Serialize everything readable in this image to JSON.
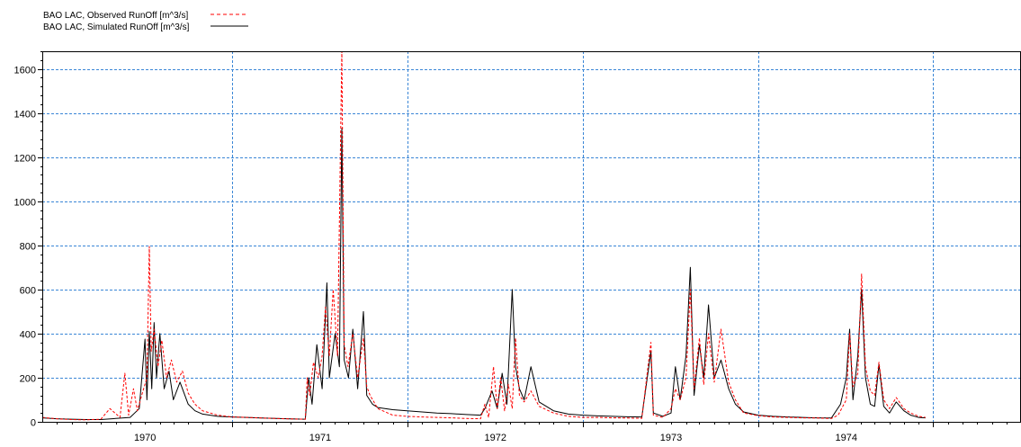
{
  "chart_data": {
    "type": "line",
    "title": "",
    "xlabel": "",
    "ylabel": "",
    "xlim": [
      "1969-06-01",
      "1974-12-31"
    ],
    "ylim": [
      0,
      1680
    ],
    "y_ticks": [
      0,
      200,
      400,
      600,
      800,
      1000,
      1200,
      1400,
      1600
    ],
    "x_ticks": [
      "1970",
      "1971",
      "1972",
      "1973",
      "1974"
    ],
    "grid": true,
    "legend_position": "top-left",
    "colors": {
      "observed": "#ff0000",
      "simulated": "#000000",
      "grid": "#3a86d6",
      "axis": "#000000"
    },
    "series": [
      {
        "name": "BAO LAC, Observed RunOff [m^3/s]",
        "style": "dashed",
        "color": "#ff0000",
        "points": [
          [
            "1969-06-01",
            20
          ],
          [
            "1969-07-01",
            14
          ],
          [
            "1969-08-01",
            10
          ],
          [
            "1969-09-01",
            9
          ],
          [
            "1969-10-01",
            12
          ],
          [
            "1969-10-20",
            60
          ],
          [
            "1969-11-10",
            20
          ],
          [
            "1969-11-20",
            220
          ],
          [
            "1969-11-28",
            30
          ],
          [
            "1969-12-08",
            150
          ],
          [
            "1969-12-16",
            50
          ],
          [
            "1969-12-25",
            120
          ],
          [
            "1970-01-05",
            200
          ],
          [
            "1970-01-10",
            795
          ],
          [
            "1970-01-14",
            320
          ],
          [
            "1970-01-20",
            420
          ],
          [
            "1970-01-28",
            250
          ],
          [
            "1970-02-05",
            370
          ],
          [
            "1970-02-15",
            200
          ],
          [
            "1970-02-25",
            280
          ],
          [
            "1970-03-08",
            180
          ],
          [
            "1970-03-20",
            230
          ],
          [
            "1970-04-01",
            130
          ],
          [
            "1970-04-15",
            80
          ],
          [
            "1970-05-01",
            50
          ],
          [
            "1970-06-01",
            30
          ],
          [
            "1970-07-01",
            22
          ],
          [
            "1970-08-01",
            20
          ],
          [
            "1970-09-01",
            17
          ],
          [
            "1970-10-01",
            15
          ],
          [
            "1970-11-01",
            13
          ],
          [
            "1970-12-01",
            12
          ],
          [
            "1970-12-05",
            200
          ],
          [
            "1970-12-10",
            120
          ],
          [
            "1970-12-18",
            270
          ],
          [
            "1970-12-28",
            200
          ],
          [
            "1971-01-05",
            300
          ],
          [
            "1971-01-12",
            520
          ],
          [
            "1971-01-20",
            300
          ],
          [
            "1971-01-28",
            600
          ],
          [
            "1971-02-06",
            300
          ],
          [
            "1971-02-15",
            1680
          ],
          [
            "1971-02-20",
            350
          ],
          [
            "1971-02-28",
            250
          ],
          [
            "1971-03-10",
            400
          ],
          [
            "1971-03-20",
            200
          ],
          [
            "1971-04-01",
            380
          ],
          [
            "1971-04-08",
            160
          ],
          [
            "1971-04-15",
            120
          ],
          [
            "1971-05-01",
            60
          ],
          [
            "1971-06-01",
            30
          ],
          [
            "1971-07-01",
            25
          ],
          [
            "1971-08-01",
            22
          ],
          [
            "1971-09-01",
            20
          ],
          [
            "1971-10-01",
            18
          ],
          [
            "1971-11-01",
            15
          ],
          [
            "1971-12-01",
            14
          ],
          [
            "1971-12-10",
            80
          ],
          [
            "1971-12-18",
            20
          ],
          [
            "1971-12-28",
            250
          ],
          [
            "1972-01-05",
            60
          ],
          [
            "1972-01-12",
            200
          ],
          [
            "1972-01-20",
            50
          ],
          [
            "1972-01-28",
            170
          ],
          [
            "1972-02-05",
            60
          ],
          [
            "1972-02-12",
            380
          ],
          [
            "1972-02-20",
            120
          ],
          [
            "1972-03-01",
            90
          ],
          [
            "1972-03-15",
            140
          ],
          [
            "1972-04-01",
            70
          ],
          [
            "1972-05-01",
            40
          ],
          [
            "1972-06-01",
            25
          ],
          [
            "1972-07-01",
            20
          ],
          [
            "1972-08-01",
            20
          ],
          [
            "1972-09-01",
            18
          ],
          [
            "1972-10-01",
            17
          ],
          [
            "1972-11-01",
            16
          ],
          [
            "1972-11-20",
            360
          ],
          [
            "1972-11-25",
            30
          ],
          [
            "1972-12-15",
            20
          ],
          [
            "1973-01-01",
            60
          ],
          [
            "1973-01-10",
            150
          ],
          [
            "1973-01-20",
            100
          ],
          [
            "1973-02-01",
            200
          ],
          [
            "1973-02-10",
            600
          ],
          [
            "1973-02-18",
            150
          ],
          [
            "1973-03-01",
            380
          ],
          [
            "1973-03-10",
            170
          ],
          [
            "1973-03-20",
            400
          ],
          [
            "1973-04-01",
            180
          ],
          [
            "1973-04-15",
            420
          ],
          [
            "1973-05-01",
            180
          ],
          [
            "1973-05-15",
            100
          ],
          [
            "1973-06-01",
            40
          ],
          [
            "1973-07-01",
            28
          ],
          [
            "1973-08-01",
            22
          ],
          [
            "1973-09-01",
            20
          ],
          [
            "1973-10-01",
            18
          ],
          [
            "1973-11-01",
            17
          ],
          [
            "1973-12-01",
            15
          ],
          [
            "1973-12-15",
            30
          ],
          [
            "1974-01-01",
            100
          ],
          [
            "1974-01-08",
            400
          ],
          [
            "1974-01-15",
            160
          ],
          [
            "1974-01-25",
            220
          ],
          [
            "1974-02-02",
            670
          ],
          [
            "1974-02-10",
            250
          ],
          [
            "1974-02-20",
            140
          ],
          [
            "1974-03-01",
            120
          ],
          [
            "1974-03-10",
            270
          ],
          [
            "1974-03-20",
            100
          ],
          [
            "1974-04-01",
            60
          ],
          [
            "1974-04-15",
            110
          ],
          [
            "1974-05-01",
            60
          ],
          [
            "1974-05-15",
            40
          ],
          [
            "1974-06-01",
            25
          ],
          [
            "1974-06-15",
            20
          ]
        ]
      },
      {
        "name": "BAO LAC, Simulated RunOff [m^3/s]",
        "style": "solid",
        "color": "#000000",
        "points": [
          [
            "1969-06-01",
            18
          ],
          [
            "1969-07-01",
            14
          ],
          [
            "1969-08-01",
            12
          ],
          [
            "1969-09-01",
            10
          ],
          [
            "1969-10-01",
            10
          ],
          [
            "1969-11-01",
            15
          ],
          [
            "1969-12-01",
            20
          ],
          [
            "1969-12-20",
            60
          ],
          [
            "1970-01-01",
            375
          ],
          [
            "1970-01-05",
            100
          ],
          [
            "1970-01-10",
            410
          ],
          [
            "1970-01-15",
            150
          ],
          [
            "1970-01-20",
            450
          ],
          [
            "1970-01-25",
            200
          ],
          [
            "1970-02-01",
            400
          ],
          [
            "1970-02-10",
            150
          ],
          [
            "1970-02-20",
            230
          ],
          [
            "1970-03-01",
            100
          ],
          [
            "1970-03-15",
            180
          ],
          [
            "1970-04-01",
            80
          ],
          [
            "1970-04-15",
            50
          ],
          [
            "1970-05-01",
            35
          ],
          [
            "1970-06-01",
            25
          ],
          [
            "1970-07-01",
            22
          ],
          [
            "1970-08-01",
            20
          ],
          [
            "1970-09-01",
            17
          ],
          [
            "1970-10-01",
            15
          ],
          [
            "1970-11-01",
            13
          ],
          [
            "1970-12-01",
            12
          ],
          [
            "1970-12-08",
            200
          ],
          [
            "1970-12-15",
            80
          ],
          [
            "1970-12-25",
            350
          ],
          [
            "1971-01-05",
            150
          ],
          [
            "1971-01-15",
            630
          ],
          [
            "1971-01-20",
            200
          ],
          [
            "1971-02-01",
            400
          ],
          [
            "1971-02-10",
            250
          ],
          [
            "1971-02-15",
            1330
          ],
          [
            "1971-02-20",
            280
          ],
          [
            "1971-03-01",
            200
          ],
          [
            "1971-03-10",
            420
          ],
          [
            "1971-03-20",
            150
          ],
          [
            "1971-04-01",
            500
          ],
          [
            "1971-04-08",
            120
          ],
          [
            "1971-04-20",
            80
          ],
          [
            "1971-05-01",
            65
          ],
          [
            "1971-06-01",
            55
          ],
          [
            "1971-07-01",
            50
          ],
          [
            "1971-08-01",
            45
          ],
          [
            "1971-09-01",
            40
          ],
          [
            "1971-10-01",
            37
          ],
          [
            "1971-11-01",
            33
          ],
          [
            "1971-12-01",
            30
          ],
          [
            "1971-12-10",
            60
          ],
          [
            "1971-12-25",
            140
          ],
          [
            "1972-01-05",
            60
          ],
          [
            "1972-01-15",
            220
          ],
          [
            "1972-01-25",
            80
          ],
          [
            "1972-02-05",
            600
          ],
          [
            "1972-02-12",
            250
          ],
          [
            "1972-02-20",
            150
          ],
          [
            "1972-03-01",
            100
          ],
          [
            "1972-03-15",
            250
          ],
          [
            "1972-04-01",
            90
          ],
          [
            "1972-05-01",
            50
          ],
          [
            "1972-06-01",
            35
          ],
          [
            "1972-07-01",
            30
          ],
          [
            "1972-08-01",
            27
          ],
          [
            "1972-09-01",
            25
          ],
          [
            "1972-10-01",
            23
          ],
          [
            "1972-11-01",
            22
          ],
          [
            "1972-11-20",
            320
          ],
          [
            "1972-11-25",
            40
          ],
          [
            "1972-12-15",
            25
          ],
          [
            "1973-01-01",
            40
          ],
          [
            "1973-01-10",
            250
          ],
          [
            "1973-01-20",
            100
          ],
          [
            "1973-02-01",
            300
          ],
          [
            "1973-02-10",
            700
          ],
          [
            "1973-02-18",
            120
          ],
          [
            "1973-03-01",
            350
          ],
          [
            "1973-03-10",
            200
          ],
          [
            "1973-03-20",
            530
          ],
          [
            "1973-04-01",
            200
          ],
          [
            "1973-04-15",
            280
          ],
          [
            "1973-05-01",
            150
          ],
          [
            "1973-05-15",
            80
          ],
          [
            "1973-06-01",
            45
          ],
          [
            "1973-07-01",
            30
          ],
          [
            "1973-08-01",
            25
          ],
          [
            "1973-09-01",
            22
          ],
          [
            "1973-10-01",
            20
          ],
          [
            "1973-11-01",
            18
          ],
          [
            "1973-12-01",
            17
          ],
          [
            "1973-12-20",
            80
          ],
          [
            "1974-01-01",
            200
          ],
          [
            "1974-01-08",
            420
          ],
          [
            "1974-01-15",
            100
          ],
          [
            "1974-01-25",
            300
          ],
          [
            "1974-02-02",
            600
          ],
          [
            "1974-02-10",
            200
          ],
          [
            "1974-02-20",
            80
          ],
          [
            "1974-03-01",
            70
          ],
          [
            "1974-03-10",
            260
          ],
          [
            "1974-03-20",
            70
          ],
          [
            "1974-04-01",
            40
          ],
          [
            "1974-04-15",
            90
          ],
          [
            "1974-05-01",
            50
          ],
          [
            "1974-05-15",
            30
          ],
          [
            "1974-06-01",
            20
          ],
          [
            "1974-06-15",
            18
          ]
        ]
      }
    ]
  }
}
